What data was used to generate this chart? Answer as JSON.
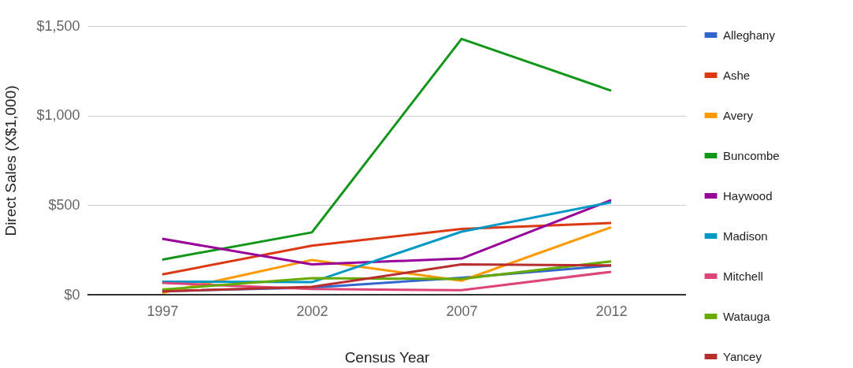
{
  "chart_data": {
    "type": "line",
    "xlabel": "Census Year",
    "ylabel": "Direct Sales (X$1,000)",
    "categories": [
      "1997",
      "2002",
      "2007",
      "2012"
    ],
    "series": [
      {
        "name": "Alleghany",
        "color": "#3366cc",
        "values": [
          20,
          40,
          95,
          163
        ]
      },
      {
        "name": "Ashe",
        "color": "#dc3912",
        "values": [
          113,
          274,
          367,
          400
        ]
      },
      {
        "name": "Avery",
        "color": "#ff9900",
        "values": [
          10,
          194,
          78,
          377
        ]
      },
      {
        "name": "Buncombe",
        "color": "#109618",
        "values": [
          196,
          348,
          1428,
          1139
        ]
      },
      {
        "name": "Haywood",
        "color": "#990099",
        "values": [
          312,
          169,
          202,
          528
        ]
      },
      {
        "name": "Madison",
        "color": "#0099c6",
        "values": [
          73,
          70,
          352,
          516
        ]
      },
      {
        "name": "Mitchell",
        "color": "#dd4477",
        "values": [
          66,
          32,
          25,
          128
        ]
      },
      {
        "name": "Watauga",
        "color": "#66aa00",
        "values": [
          29,
          92,
          88,
          186
        ]
      },
      {
        "name": "Yancey",
        "color": "#b82e2e",
        "values": [
          19,
          44,
          169,
          164
        ]
      }
    ],
    "ylim": [
      0,
      1500
    ],
    "yticks": [
      {
        "value": 0,
        "label": "$0"
      },
      {
        "value": 500,
        "label": "$500"
      },
      {
        "value": 1000,
        "label": "$1,000"
      },
      {
        "value": 1500,
        "label": "$1,500"
      }
    ],
    "grid": "y",
    "legend": "right",
    "line_style": "solid",
    "marker": "none"
  }
}
